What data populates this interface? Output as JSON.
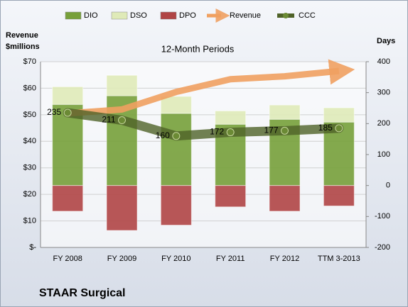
{
  "chart_data": {
    "type": "bar",
    "title": "12-Month Periods",
    "ylabel": [
      "Revenue",
      "$millions"
    ],
    "y2label": "Days",
    "footer": "STAAR Surgical",
    "categories": [
      "FY 2008",
      "FY 2009",
      "FY 2010",
      "FY 2011",
      "FY 2012",
      "TTM 3-2013"
    ],
    "series": [
      {
        "name": "DIO",
        "type": "bar",
        "color": "#77a03a",
        "axis": "y2",
        "values": [
          262,
          290,
          233,
          198,
          214,
          205
        ]
      },
      {
        "name": "DSO",
        "type": "bar",
        "color": "#dfeab8",
        "axis": "y2",
        "values": [
          57,
          66,
          55,
          43,
          46,
          46
        ]
      },
      {
        "name": "DPO",
        "type": "bar",
        "color": "#b04545",
        "axis": "y2",
        "values": [
          -83,
          -145,
          -128,
          -69,
          -83,
          -66
        ]
      },
      {
        "name": "Revenue",
        "type": "arrow",
        "color": "#f0a060",
        "axis": "y",
        "values": [
          50.5,
          52,
          58.6,
          63.4,
          64.5,
          66.5
        ]
      },
      {
        "name": "CCC",
        "type": "line",
        "color": "#4f6228",
        "axis": "y2",
        "values": [
          235,
          211,
          160,
          172,
          177,
          185
        ]
      }
    ],
    "ylim": [
      0,
      70
    ],
    "yticks": [
      {
        "value": 0,
        "label": "$-"
      },
      {
        "value": 10,
        "label": "$10"
      },
      {
        "value": 20,
        "label": "$20"
      },
      {
        "value": 30,
        "label": "$30"
      },
      {
        "value": 40,
        "label": "$40"
      },
      {
        "value": 50,
        "label": "$50"
      },
      {
        "value": 60,
        "label": "$60"
      },
      {
        "value": 70,
        "label": "$70"
      }
    ],
    "y2lim": [
      -200,
      400
    ],
    "y2ticks": [
      -200,
      -100,
      0,
      100,
      200,
      300,
      400
    ],
    "grid": true
  }
}
